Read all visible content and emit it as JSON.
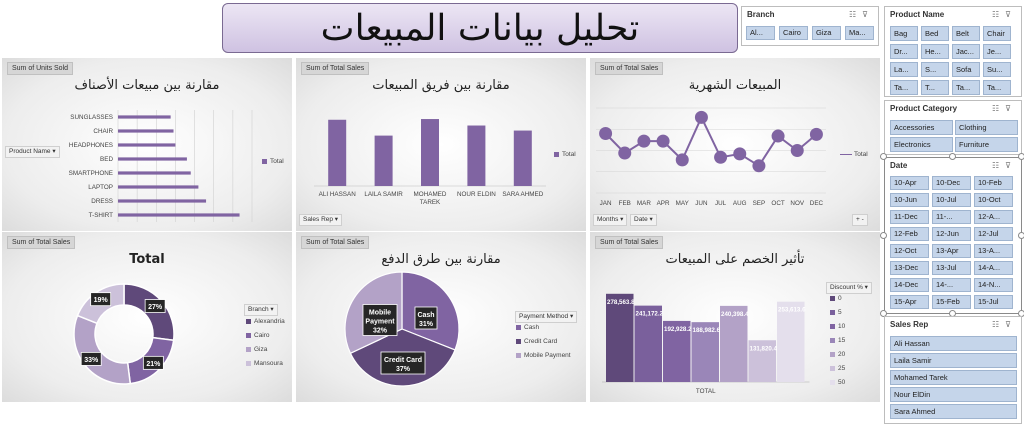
{
  "page_title": "تحليل بيانات المبيعات",
  "colors": {
    "primary": "#8064a2",
    "light": "#b3a2c7",
    "dark": "#5f497a",
    "pale": "#ccc1da"
  },
  "panels": {
    "units": {
      "tag": "Sum of Units Sold",
      "title": "مقارنة بين مبيعات الأصناف",
      "filter": "Product Name",
      "legend": "Total"
    },
    "team": {
      "tag": "Sum of Total Sales",
      "title": "مقارنة بين فريق المبيعات",
      "filter": "Sales Rep",
      "legend": "Total"
    },
    "monthly": {
      "tag": "Sum of Total Sales",
      "title": "المبيعات الشهرية",
      "filter1": "Months",
      "filter2": "Date",
      "legend": "Total",
      "zoom": "+ -"
    },
    "branch": {
      "tag": "Sum of Total Sales",
      "title": "Total",
      "legend_title": "Branch"
    },
    "payment": {
      "tag": "Sum of Total Sales",
      "title": "مقارنة بين طرق الدفع",
      "legend_title": "Payment Method"
    },
    "discount": {
      "tag": "Sum of Total Sales",
      "title": "تأثير الخصم على المبيعات",
      "legend_title": "Discount %",
      "xlabel": "TOTAL"
    }
  },
  "chart_data": [
    {
      "type": "bar",
      "orientation": "horizontal",
      "categories": [
        "SUNGLASSES",
        "CHAIR",
        "HEADPHONES",
        "BED",
        "SMARTPHONE",
        "LAPTOP",
        "DRESS",
        "T-SHIRT"
      ],
      "values": [
        55,
        58,
        60,
        72,
        76,
        84,
        92,
        127
      ],
      "legend": [
        "Total"
      ]
    },
    {
      "type": "bar",
      "categories": [
        "ALI HASSAN",
        "LAILA SAMIR",
        "MOHAMED TAREK",
        "NOUR ELDIN",
        "SARA AHMED"
      ],
      "values": [
        92,
        70,
        93,
        84,
        77
      ],
      "legend": [
        "Total"
      ]
    },
    {
      "type": "line",
      "categories": [
        "JAN",
        "FEB",
        "MAR",
        "APR",
        "MAY",
        "JUN",
        "JUL",
        "AUG",
        "SEP",
        "OCT",
        "NOV",
        "DEC"
      ],
      "values": [
        70,
        47,
        61,
        61,
        39,
        89,
        42,
        46,
        32,
        67,
        50,
        69
      ],
      "legend": [
        "Total"
      ]
    },
    {
      "type": "pie",
      "donut": true,
      "legend": [
        "Alexandria",
        "Cairo",
        "Giza",
        "Mansoura"
      ],
      "labels": [
        "27%",
        "21%",
        "33%",
        "19%"
      ],
      "values": [
        27,
        21,
        33,
        19
      ]
    },
    {
      "type": "pie",
      "legend": [
        "Cash",
        "Credit Card",
        "Mobile Payment"
      ],
      "slices": [
        {
          "name": "Cash",
          "value": 31,
          "label": "31%"
        },
        {
          "name": "Credit Card",
          "value": 37,
          "label": "37%"
        },
        {
          "name": "Mobile Payment",
          "value": 32,
          "label": "32%"
        }
      ]
    },
    {
      "type": "bar",
      "categories": [
        "TOTAL"
      ],
      "series": [
        {
          "name": "0",
          "value": 278563.8,
          "label": "278,563.8"
        },
        {
          "name": "5",
          "value": 241172.2,
          "label": "241,172.2"
        },
        {
          "name": "10",
          "value": 192928.2,
          "label": "192,928.2"
        },
        {
          "name": "15",
          "value": 188982.6,
          "label": "188,982.6"
        },
        {
          "name": "20",
          "value": 240398.4,
          "label": "240,398.4"
        },
        {
          "name": "25",
          "value": 131820.4,
          "label": "131,820.4"
        },
        {
          "name": "50",
          "value": 253613.6,
          "label": "253,613.6"
        }
      ]
    }
  ],
  "slicers": {
    "branch": {
      "title": "Branch",
      "items": [
        "Al...",
        "Cairo",
        "Giza",
        "Ma..."
      ]
    },
    "product_name": {
      "title": "Product Name",
      "items": [
        "Bag",
        "Bed",
        "Belt",
        "Chair",
        "Dr...",
        "He...",
        "Jac...",
        "Je...",
        "La...",
        "S...",
        "Sofa",
        "Su...",
        "Ta...",
        "T...",
        "Ta...",
        "Ta..."
      ]
    },
    "product_category": {
      "title": "Product Category",
      "items": [
        "Accessories",
        "Clothing",
        "Electronics",
        "Furniture"
      ]
    },
    "date": {
      "title": "Date",
      "items": [
        "10-Apr",
        "10-Dec",
        "10-Feb",
        "10-Jun",
        "10-Jul",
        "10-Oct",
        "11-Dec",
        "11-...",
        "12-A...",
        "12-Feb",
        "12-Jun",
        "12-Jul",
        "12-Oct",
        "13-Apr",
        "13-A...",
        "13-Dec",
        "13-Jul",
        "14-A...",
        "14-Dec",
        "14-...",
        "14-N...",
        "15-Apr",
        "15-Feb",
        "15-Jul"
      ]
    },
    "sales_rep": {
      "title": "Sales Rep",
      "items": [
        "Ali Hassan",
        "Laila Samir",
        "Mohamed Tarek",
        "Nour ElDin",
        "Sara Ahmed"
      ]
    }
  }
}
